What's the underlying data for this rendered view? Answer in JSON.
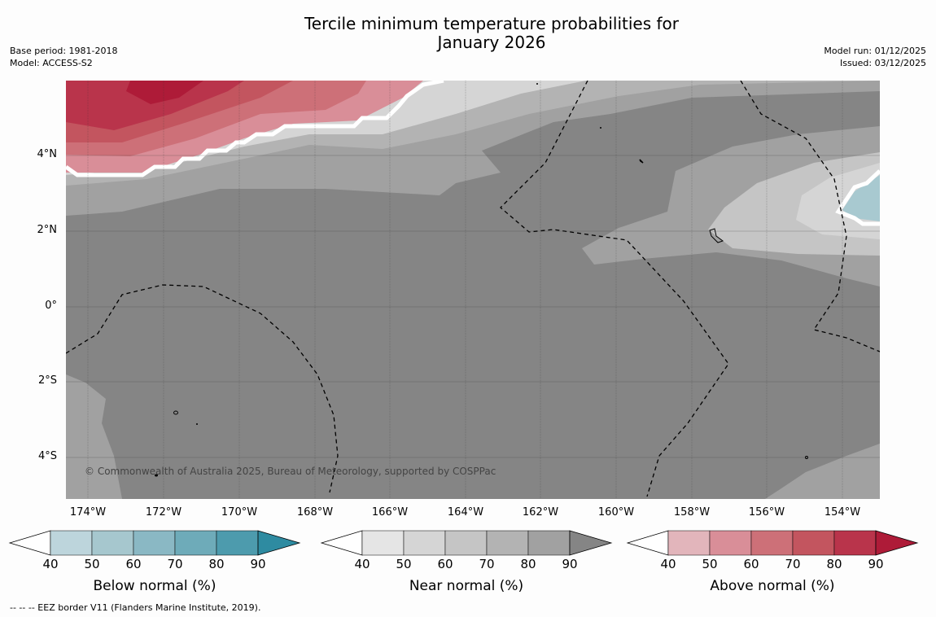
{
  "title_line1": "Tercile minimum temperature probabilities for",
  "title_line2": "January 2026",
  "meta_left": {
    "base_period": "Base period: 1981-2018",
    "model": "Model: ACCESS-S2"
  },
  "meta_right": {
    "model_run": "Model run: 01/12/2025",
    "issued": "Issued: 03/12/2025"
  },
  "map": {
    "lat_labels": [
      "4°N",
      "2°N",
      "0°",
      "2°S",
      "4°S"
    ],
    "lon_labels": [
      "174°W",
      "172°W",
      "170°W",
      "168°W",
      "166°W",
      "164°W",
      "162°W",
      "160°W",
      "158°W",
      "156°W",
      "154°W"
    ],
    "copyright": "© Commonwealth of Australia 2025, Bureau of Meteorology, supported by COSPPac"
  },
  "colorbars": [
    {
      "label": "Below normal (%)",
      "ticks": [
        "40",
        "50",
        "60",
        "70",
        "80",
        "90"
      ],
      "colors": [
        "#ffffff",
        "#bdd5dc",
        "#a6c7ce",
        "#8ab8c4",
        "#6eabb9",
        "#4d9bad",
        "#2e8ba1"
      ]
    },
    {
      "label": "Near normal (%)",
      "ticks": [
        "40",
        "50",
        "60",
        "70",
        "80",
        "90"
      ],
      "colors": [
        "#ffffff",
        "#e5e5e5",
        "#d5d5d5",
        "#c5c5c5",
        "#b3b3b3",
        "#a1a1a1",
        "#858585"
      ]
    },
    {
      "label": "Above normal (%)",
      "ticks": [
        "40",
        "50",
        "60",
        "70",
        "80",
        "90"
      ],
      "colors": [
        "#ffffff",
        "#e2b5bb",
        "#d98e98",
        "#cd7078",
        "#c3555f",
        "#b9344b",
        "#ae1b38"
      ]
    }
  ],
  "footnote": "--  --  -- EEZ border V11 (Flanders Marine Institute, 2019)."
}
